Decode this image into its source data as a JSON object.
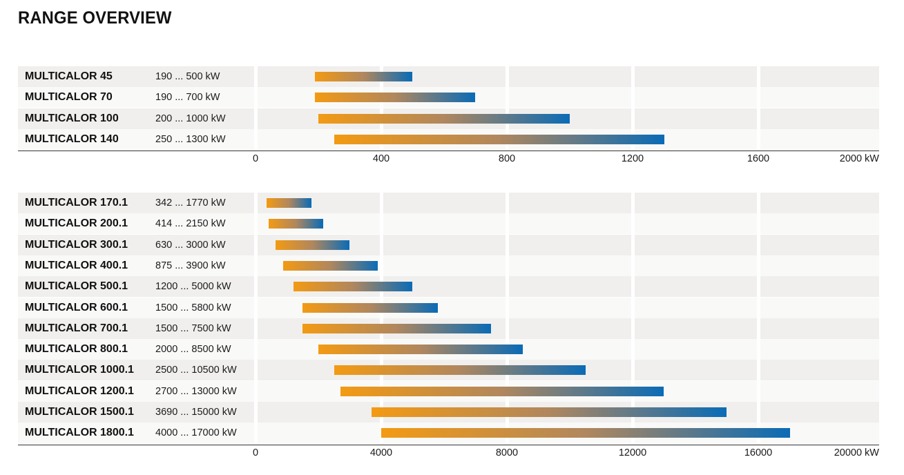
{
  "page": {
    "title": "RANGE OVERVIEW"
  },
  "chart_data": [
    {
      "type": "bar",
      "orientation": "horizontal",
      "range_bars": true,
      "categories": [
        "MULTICALOR 45",
        "MULTICALOR 70",
        "MULTICALOR 100",
        "MULTICALOR 140"
      ],
      "range_labels": [
        "190 ... 500 kW",
        "190 ... 700 kW",
        "200 ... 1000 kW",
        "250 ... 1300 kW"
      ],
      "values": [
        [
          190,
          500
        ],
        [
          190,
          700
        ],
        [
          200,
          1000
        ],
        [
          250,
          1300
        ]
      ],
      "xlim": [
        0,
        2000
      ],
      "xticks": [
        "0",
        "400",
        "800",
        "1200",
        "1600",
        "2000 kW"
      ],
      "grid": true,
      "colors": {
        "start": "#f39a13",
        "mid": "#b0875e",
        "end": "#0a6bb6"
      }
    },
    {
      "type": "bar",
      "orientation": "horizontal",
      "range_bars": true,
      "categories": [
        "MULTICALOR 170.1",
        "MULTICALOR 200.1",
        "MULTICALOR 300.1",
        "MULTICALOR 400.1",
        "MULTICALOR 500.1",
        "MULTICALOR 600.1",
        "MULTICALOR 700.1",
        "MULTICALOR 800.1",
        "MULTICALOR 1000.1",
        "MULTICALOR 1200.1",
        "MULTICALOR 1500.1",
        "MULTICALOR 1800.1"
      ],
      "range_labels": [
        "342 ... 1770 kW",
        "414 ... 2150 kW",
        "630 ... 3000 kW",
        "875 ... 3900 kW",
        "1200 ... 5000 kW",
        "1500 ... 5800 kW",
        "1500 ... 7500 kW",
        "2000 ... 8500 kW",
        "2500 ... 10500 kW",
        "2700 ... 13000 kW",
        "3690 ... 15000 kW",
        "4000 ... 17000 kW"
      ],
      "values": [
        [
          342,
          1770
        ],
        [
          414,
          2150
        ],
        [
          630,
          3000
        ],
        [
          875,
          3900
        ],
        [
          1200,
          5000
        ],
        [
          1500,
          5800
        ],
        [
          1500,
          7500
        ],
        [
          2000,
          8500
        ],
        [
          2500,
          10500
        ],
        [
          2700,
          13000
        ],
        [
          3690,
          15000
        ],
        [
          4000,
          17000
        ]
      ],
      "xlim": [
        0,
        20000
      ],
      "xticks": [
        "0",
        "4000",
        "8000",
        "12000",
        "16000",
        "20000 kW"
      ],
      "grid": true,
      "colors": {
        "start": "#f39a13",
        "mid": "#b0875e",
        "end": "#0a6bb6"
      }
    }
  ]
}
